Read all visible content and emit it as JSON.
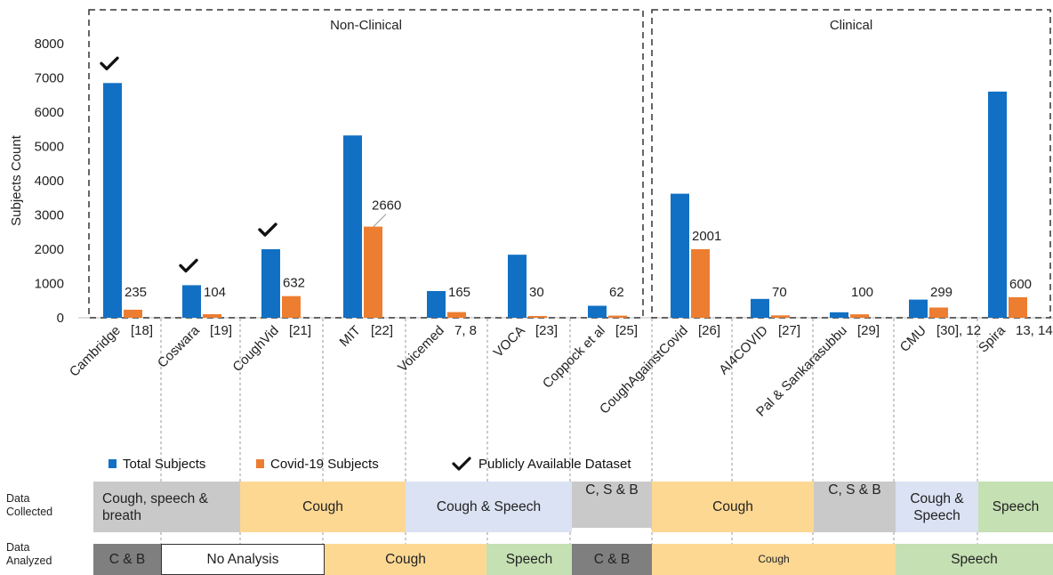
{
  "chart_data": {
    "type": "bar",
    "ylabel": "Subjects Count",
    "ylim": [
      0,
      8000
    ],
    "yticks": [
      "0",
      "1000",
      "2000",
      "3000",
      "4000",
      "5000",
      "6000",
      "7000",
      "8000"
    ],
    "ytick_values": [
      0,
      1000,
      2000,
      3000,
      4000,
      5000,
      6000,
      7000,
      8000
    ],
    "groups": [
      {
        "label": "Non-Clinical",
        "from": 0,
        "to": 6
      },
      {
        "label": "Clinical",
        "from": 7,
        "to": 11
      }
    ],
    "categories": [
      "Cambridge",
      "Coswara",
      "CoughVid",
      "MIT",
      "Voicemed",
      "VOCA",
      "Coppock et al",
      "CoughAgainstCovid",
      "AI4COVID",
      "Pal & Sankarasubbu",
      "CMU",
      "Spira"
    ],
    "refs": [
      "[18]",
      "[19]",
      "[21]",
      "[22]",
      "7, 8",
      "[23]",
      "[25]",
      "[26]",
      "[27]",
      "[29]",
      "[30], 12",
      "13, 14"
    ],
    "series": [
      {
        "name": "Total Subjects",
        "color": "#1170c4",
        "values": [
          6850,
          950,
          2000,
          5320,
          780,
          1840,
          350,
          3620,
          550,
          160,
          530,
          6600
        ]
      },
      {
        "name": "Covid-19 Subjects",
        "color": "#ed7d31",
        "values": [
          235,
          104,
          632,
          2660,
          165,
          30,
          62,
          2001,
          70,
          100,
          299,
          600
        ],
        "labels": [
          "235",
          "104",
          "632",
          "2660",
          "165",
          "30",
          "62",
          "2001",
          "70",
          "100",
          "299",
          "600"
        ]
      }
    ],
    "public_dataset": [
      true,
      true,
      true,
      false,
      false,
      false,
      false,
      false,
      false,
      false,
      false,
      false
    ],
    "public_label": "Publicly Available Dataset"
  },
  "rows": {
    "collected": {
      "label_line1": "Data",
      "label_line2": "Collected",
      "cells": [
        {
          "text": "Cough, speech & breath",
          "color": "#c9c9c9"
        },
        {
          "text": "Cough",
          "color": "#fcd893"
        },
        {
          "text": "Cough & Speech",
          "color": "#dae2f3"
        },
        {
          "text": "C, S & B",
          "color": "#c9c9c9"
        },
        {
          "text": "Cough",
          "color": "#fcd893"
        },
        {
          "text": "C, S & B",
          "color": "#c9c9c9"
        },
        {
          "text": "Cough & Speech",
          "color": "#dae2f3"
        },
        {
          "text": "Speech",
          "color": "#c5e0b3"
        }
      ]
    },
    "analyzed": {
      "label_line1": "Data",
      "label_line2": "Analyzed",
      "cells": [
        {
          "text": "C & B",
          "color": "#7f7f7f"
        },
        {
          "text": "No Analysis",
          "color": "#ffffff"
        },
        {
          "text": "Cough",
          "color": "#fcd893"
        },
        {
          "text": "Speech",
          "color": "#c5e0b3"
        },
        {
          "text": "C & B",
          "color": "#7f7f7f"
        },
        {
          "text": "Cough",
          "color": "#fcd893"
        },
        {
          "text": "Speech",
          "color": "#c5e0b3"
        }
      ]
    }
  }
}
